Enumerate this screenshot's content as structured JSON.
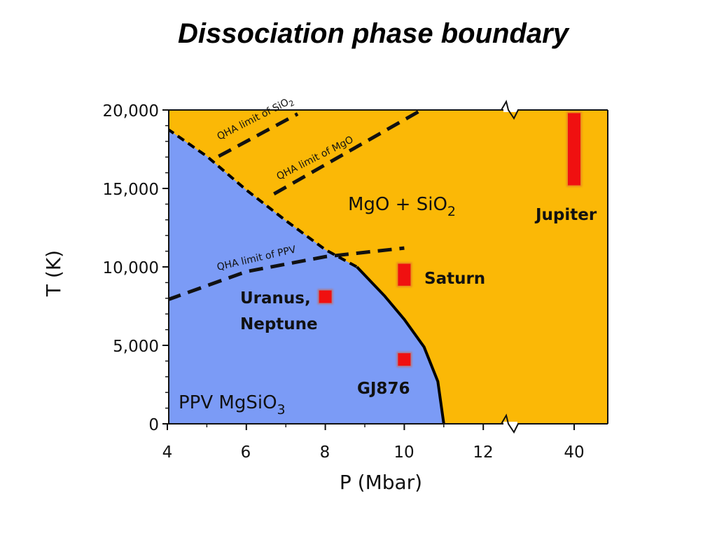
{
  "slide": {
    "title": "Dissociation phase boundary"
  },
  "chart_data": {
    "type": "area",
    "title": "",
    "xlabel": "P (Mbar)",
    "ylabel": "T (K)",
    "x_ticks": [
      "4",
      "6",
      "8",
      "10",
      "12",
      "40"
    ],
    "y_ticks": [
      "0",
      "5,000",
      "10,000",
      "15,000",
      "20,000"
    ],
    "xlim": [
      4,
      13.2
    ],
    "ylim": [
      0,
      20000
    ],
    "axis_break": "between 12 and 40 (top and bottom edges)",
    "grid": false,
    "colors": {
      "ppv_region": "#7b9bf6",
      "dissociated_region": "#fbb806",
      "planet_marker": "#f01010",
      "boundary_line": "#000000"
    },
    "regions": [
      {
        "name": "PPV MgSiO3",
        "label_main": "PPV MgSiO",
        "label_sub": "3"
      },
      {
        "name": "MgO + SiO2",
        "label_main": "MgO + SiO",
        "label_sub": "2"
      }
    ],
    "phase_boundary": {
      "name": "dissociation phase boundary",
      "points": [
        [
          4.0,
          18800
        ],
        [
          5.0,
          17050
        ],
        [
          6.0,
          14900
        ],
        [
          7.0,
          12950
        ],
        [
          8.0,
          11100
        ],
        [
          8.8,
          10000
        ],
        [
          9.5,
          8150
        ],
        [
          10.0,
          6650
        ],
        [
          10.5,
          4900
        ],
        [
          10.85,
          2700
        ],
        [
          11.0,
          0
        ]
      ]
    },
    "qha_limits": [
      {
        "name": "QHA limit of SiO2",
        "label_main": "QHA limit of SiO",
        "label_sub": "2",
        "points": [
          [
            5.3,
            17050
          ],
          [
            7.3,
            19750
          ]
        ]
      },
      {
        "name": "QHA limit of MgO",
        "label_main": "QHA limit of MgO",
        "points": [
          [
            6.7,
            14650
          ],
          [
            10.4,
            19950
          ]
        ]
      },
      {
        "name": "QHA limit of PPV",
        "label_main": "QHA limit of PPV",
        "points": [
          [
            4.0,
            7900
          ],
          [
            6.0,
            9700
          ],
          [
            8.0,
            10650
          ],
          [
            10.0,
            11200
          ]
        ]
      }
    ],
    "planets": [
      {
        "name": "Jupiter",
        "label": "Jupiter",
        "x_tick": "40",
        "y_low": 15200,
        "y_high": 19800
      },
      {
        "name": "Saturn",
        "label": "Saturn",
        "p": 10.0,
        "y_low": 8800,
        "y_high": 10200
      },
      {
        "name": "Uranus, Neptune",
        "label_line1": "Uranus,",
        "label_line2": "Neptune",
        "p": 8.0,
        "y_low": 7700,
        "y_high": 8500
      },
      {
        "name": "GJ876",
        "label": "GJ876",
        "p": 10.0,
        "y_low": 3700,
        "y_high": 4500
      }
    ]
  }
}
